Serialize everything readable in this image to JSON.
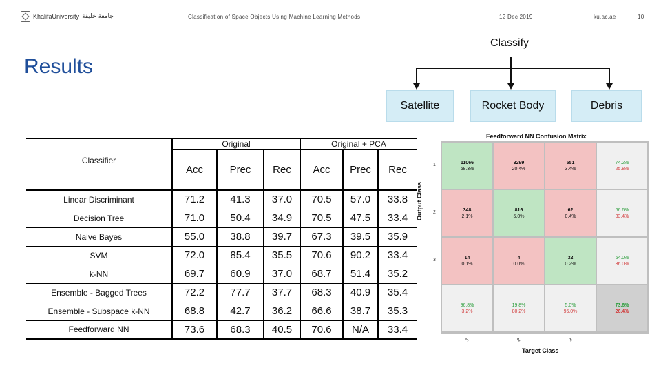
{
  "header": {
    "logo_text": "KhalifaUniversity",
    "logo_arabic": "جامعة خليفة",
    "presentation_title": "Classification of Space Objects Using Machine Learning Methods",
    "date": "12 Dec 2019",
    "website": "ku.ac.ae",
    "page_number": "10"
  },
  "slide_title": "Results",
  "diagram": {
    "root": "Classify",
    "children": [
      "Satellite",
      "Rocket Body",
      "Debris"
    ]
  },
  "table": {
    "classifier_header": "Classifier",
    "group_headers": [
      "Original",
      "Original + PCA"
    ],
    "metric_headers": [
      "Acc",
      "Prec",
      "Rec",
      "Acc",
      "Prec",
      "Rec"
    ],
    "rows": [
      {
        "name": "Linear Discriminant",
        "values": [
          "71.2",
          "41.3",
          "37.0",
          "70.5",
          "57.0",
          "33.8"
        ]
      },
      {
        "name": "Decision Tree",
        "values": [
          "71.0",
          "50.4",
          "34.9",
          "70.5",
          "47.5",
          "33.4"
        ]
      },
      {
        "name": "Naive Bayes",
        "values": [
          "55.0",
          "38.8",
          "39.7",
          "67.3",
          "39.5",
          "35.9"
        ]
      },
      {
        "name": "SVM",
        "values": [
          "72.0",
          "85.4",
          "35.5",
          "70.6",
          "90.2",
          "33.4"
        ]
      },
      {
        "name": "k-NN",
        "values": [
          "69.7",
          "60.9",
          "37.0",
          "68.7",
          "51.4",
          "35.2"
        ]
      },
      {
        "name": "Ensemble - Bagged Trees",
        "values": [
          "72.2",
          "77.7",
          "37.7",
          "68.3",
          "40.9",
          "35.4"
        ]
      },
      {
        "name": "Ensemble - Subspace k-NN",
        "values": [
          "68.8",
          "42.7",
          "36.2",
          "66.6",
          "38.7",
          "35.3"
        ]
      },
      {
        "name": "Feedforward NN",
        "values": [
          "73.6",
          "68.3",
          "40.5",
          "70.6",
          "N/A",
          "33.4"
        ]
      }
    ]
  },
  "confusion_matrix": {
    "title": "Feedforward NN Confusion Matrix",
    "ylabel": "Output Class",
    "xlabel": "Target Class",
    "class_labels": [
      "1",
      "2",
      "3"
    ],
    "colors": {
      "correct": "#bfe5c3",
      "wrong": "#f3c2c2",
      "summary": "#f0f0f0",
      "overall": "#d0d0d0",
      "green_text": "#2e9e3e",
      "red_text": "#d13a3a"
    },
    "cells": [
      [
        {
          "count": "11066",
          "pct": "68.3%"
        },
        {
          "count": "3299",
          "pct": "20.4%"
        },
        {
          "count": "551",
          "pct": "3.4%"
        }
      ],
      [
        {
          "count": "348",
          "pct": "2.1%"
        },
        {
          "count": "816",
          "pct": "5.0%"
        },
        {
          "count": "62",
          "pct": "0.4%"
        }
      ],
      [
        {
          "count": "14",
          "pct": "0.1%"
        },
        {
          "count": "4",
          "pct": "0.0%"
        },
        {
          "count": "32",
          "pct": "0.2%"
        }
      ]
    ],
    "row_summary": [
      [
        "74.2%",
        "25.8%"
      ],
      [
        "66.6%",
        "33.4%"
      ],
      [
        "64.0%",
        "36.0%"
      ]
    ],
    "col_summary": [
      [
        "96.8%",
        "3.2%"
      ],
      [
        "19.8%",
        "80.2%"
      ],
      [
        "5.0%",
        "95.0%"
      ]
    ],
    "overall": [
      "73.6%",
      "26.4%"
    ]
  }
}
